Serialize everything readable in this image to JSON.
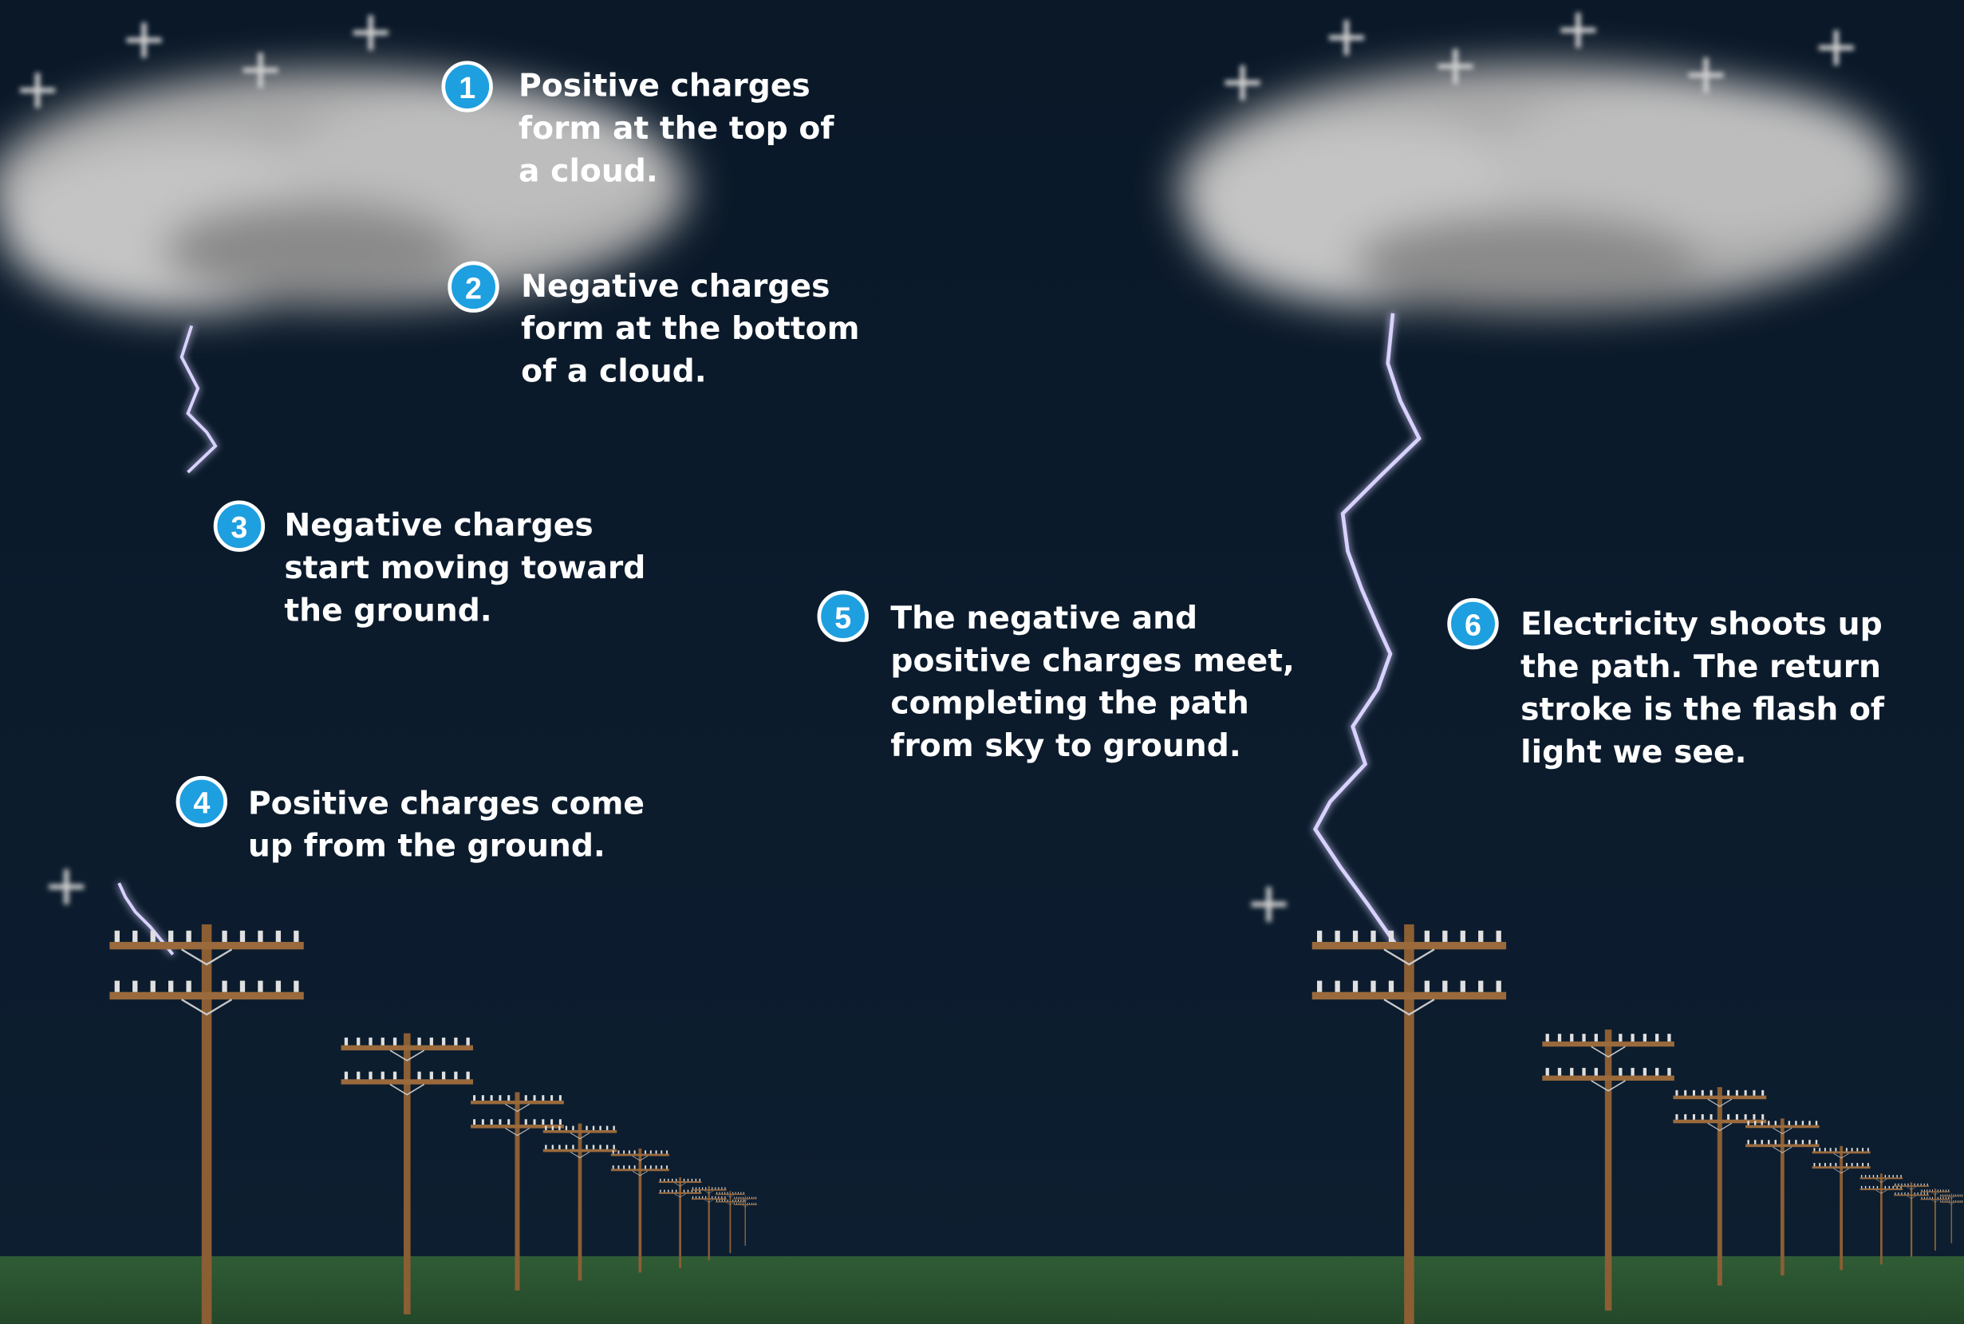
{
  "steps": [
    {
      "number": "1",
      "lines": [
        "Positive charges",
        "form at the top of",
        "a cloud."
      ]
    },
    {
      "number": "2",
      "lines": [
        "Negative charges",
        "form at the bottom",
        "of a cloud."
      ]
    },
    {
      "number": "3",
      "lines": [
        "Negative charges",
        "start moving toward",
        "the ground."
      ]
    },
    {
      "number": "4",
      "lines": [
        "Positive charges come",
        "up from the ground."
      ]
    },
    {
      "number": "5",
      "lines": [
        "The negative and",
        "positive charges meet,",
        "completing the path",
        "from sky to ground."
      ]
    },
    {
      "number": "6",
      "lines": [
        "Electricity shoots up",
        "the path. The return",
        "stroke is the flash of",
        "light we see."
      ]
    }
  ]
}
